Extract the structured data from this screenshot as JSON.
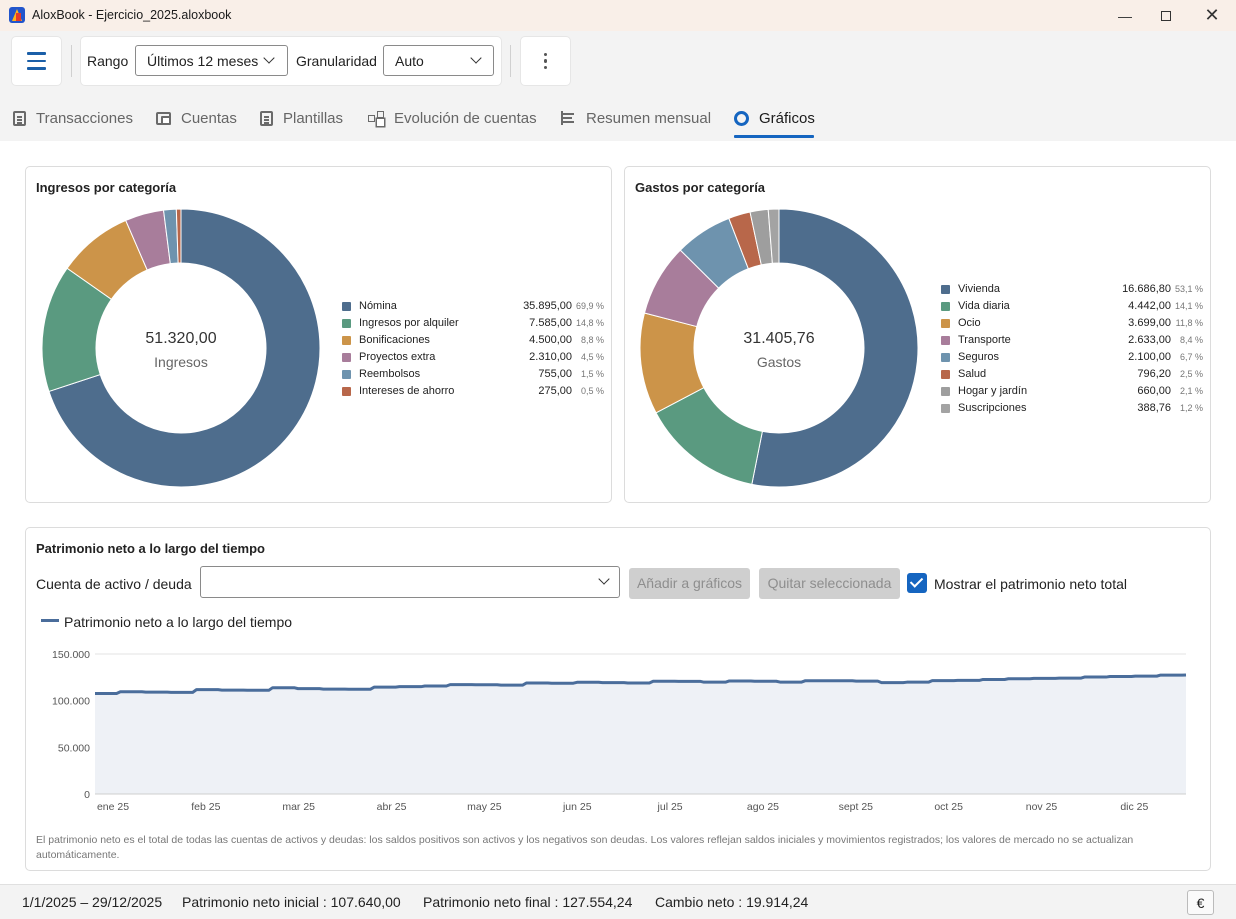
{
  "window": {
    "title": "AloxBook - Ejercicio_2025.aloxbook"
  },
  "toolbar": {
    "range_label": "Rango",
    "range_value": "Últimos 12 meses",
    "granularity_label": "Granularidad",
    "granularity_value": "Auto"
  },
  "tabs": [
    {
      "label": "Transacciones",
      "icon": "document-icon"
    },
    {
      "label": "Cuentas",
      "icon": "wallet-icon"
    },
    {
      "label": "Plantillas",
      "icon": "template-icon"
    },
    {
      "label": "Evolución de cuentas",
      "icon": "tree-icon"
    },
    {
      "label": "Resumen mensual",
      "icon": "list-icon"
    },
    {
      "label": "Gráficos",
      "icon": "chart-ring-icon",
      "active": true
    }
  ],
  "income_card": {
    "title": "Ingresos por categoría",
    "center_value": "51.320,00",
    "center_label": "Ingresos"
  },
  "expense_card": {
    "title": "Gastos por categoría",
    "center_value": "31.405,76",
    "center_label": "Gastos"
  },
  "networth_card": {
    "title": "Patrimonio neto a lo largo del tiempo",
    "account_label": "Cuenta de activo / deuda",
    "account_value": "",
    "add_button": "Añadir a gráficos",
    "remove_button": "Quitar seleccionada",
    "show_total_label": "Mostrar el patrimonio neto total",
    "show_total_checked": true,
    "footnote": "El patrimonio neto es el total de todas las cuentas de activos y deudas: los saldos positivos son activos y los negativos son deudas. Los valores reflejan saldos iniciales y movimientos registrados; los valores de mercado no se actualizan automáticamente."
  },
  "chart_data": [
    {
      "type": "pie",
      "title": "Ingresos por categoría",
      "categories": [
        "Nómina",
        "Ingresos por alquiler",
        "Bonificaciones",
        "Proyectos extra",
        "Reembolsos",
        "Intereses de ahorro"
      ],
      "values": [
        35895.0,
        7585.0,
        4500.0,
        2310.0,
        755.0,
        275.0
      ],
      "value_labels": [
        "35.895,00",
        "7.585,00",
        "4.500,00",
        "2.310,00",
        "755,00",
        "275,00"
      ],
      "percent_labels": [
        "69,9 %",
        "14,8 %",
        "8,8 %",
        "4,5 %",
        "1,5 %",
        "0,5 %"
      ],
      "colors": [
        "#4e6d8d",
        "#5a9a80",
        "#cc9449",
        "#a87d9b",
        "#6e93ae",
        "#b8674a"
      ],
      "legend": "right"
    },
    {
      "type": "pie",
      "title": "Gastos por categoría",
      "categories": [
        "Vivienda",
        "Vida diaria",
        "Ocio",
        "Transporte",
        "Seguros",
        "Salud",
        "Hogar y jardín",
        "Suscripciones"
      ],
      "values": [
        16686.8,
        4442.0,
        3699.0,
        2633.0,
        2100.0,
        796.2,
        660.0,
        388.76
      ],
      "value_labels": [
        "16.686,80",
        "4.442,00",
        "3.699,00",
        "2.633,00",
        "2.100,00",
        "796,20",
        "660,00",
        "388,76"
      ],
      "percent_labels": [
        "53,1 %",
        "14,1 %",
        "11,8 %",
        "8,4 %",
        "6,7 %",
        "2,5 %",
        "2,1 %",
        "1,2 %"
      ],
      "colors": [
        "#4e6d8d",
        "#5a9a80",
        "#cc9449",
        "#a87d9b",
        "#6e93ae",
        "#b8674a",
        "#9e9e9e",
        "#a3a3a3"
      ],
      "legend": "right"
    },
    {
      "type": "line",
      "title": "",
      "series": [
        {
          "name": "Patrimonio neto a lo largo del tiempo",
          "color": "#4a6d9b",
          "values": [
            107640,
            109500,
            109200,
            108900,
            111800,
            111300,
            111100,
            113900,
            112900,
            112400,
            112200,
            114500,
            115000,
            115700,
            117200,
            117100,
            116600,
            118900,
            118700,
            119700,
            119300,
            118900,
            120800,
            120700,
            119800,
            121100,
            120800,
            119900,
            121400,
            121300,
            120900,
            119300,
            119800,
            121500,
            121700,
            122700,
            123500,
            123900,
            124100,
            125300,
            125900,
            126300,
            127400,
            127554.24
          ]
        }
      ],
      "x_tick_labels": [
        "ene 25",
        "feb 25",
        "mar 25",
        "abr 25",
        "may 25",
        "jun 25",
        "jul 25",
        "ago 25",
        "sept 25",
        "oct 25",
        "nov 25",
        "dic 25"
      ],
      "y_tick_labels": [
        "0",
        "50.000",
        "100.000",
        "150.000"
      ],
      "ylim": [
        0,
        150000
      ],
      "grid": true,
      "area_fill": true,
      "legend": "top-left"
    }
  ],
  "status": {
    "date_range": "1/1/2025 – 29/12/2025",
    "initial_label": "Patrimonio neto inicial",
    "initial_value": "107.640,00",
    "final_label": "Patrimonio neto final",
    "final_value": "127.554,24",
    "change_label": "Cambio neto",
    "change_value": "19.914,24",
    "currency_button": "€"
  }
}
